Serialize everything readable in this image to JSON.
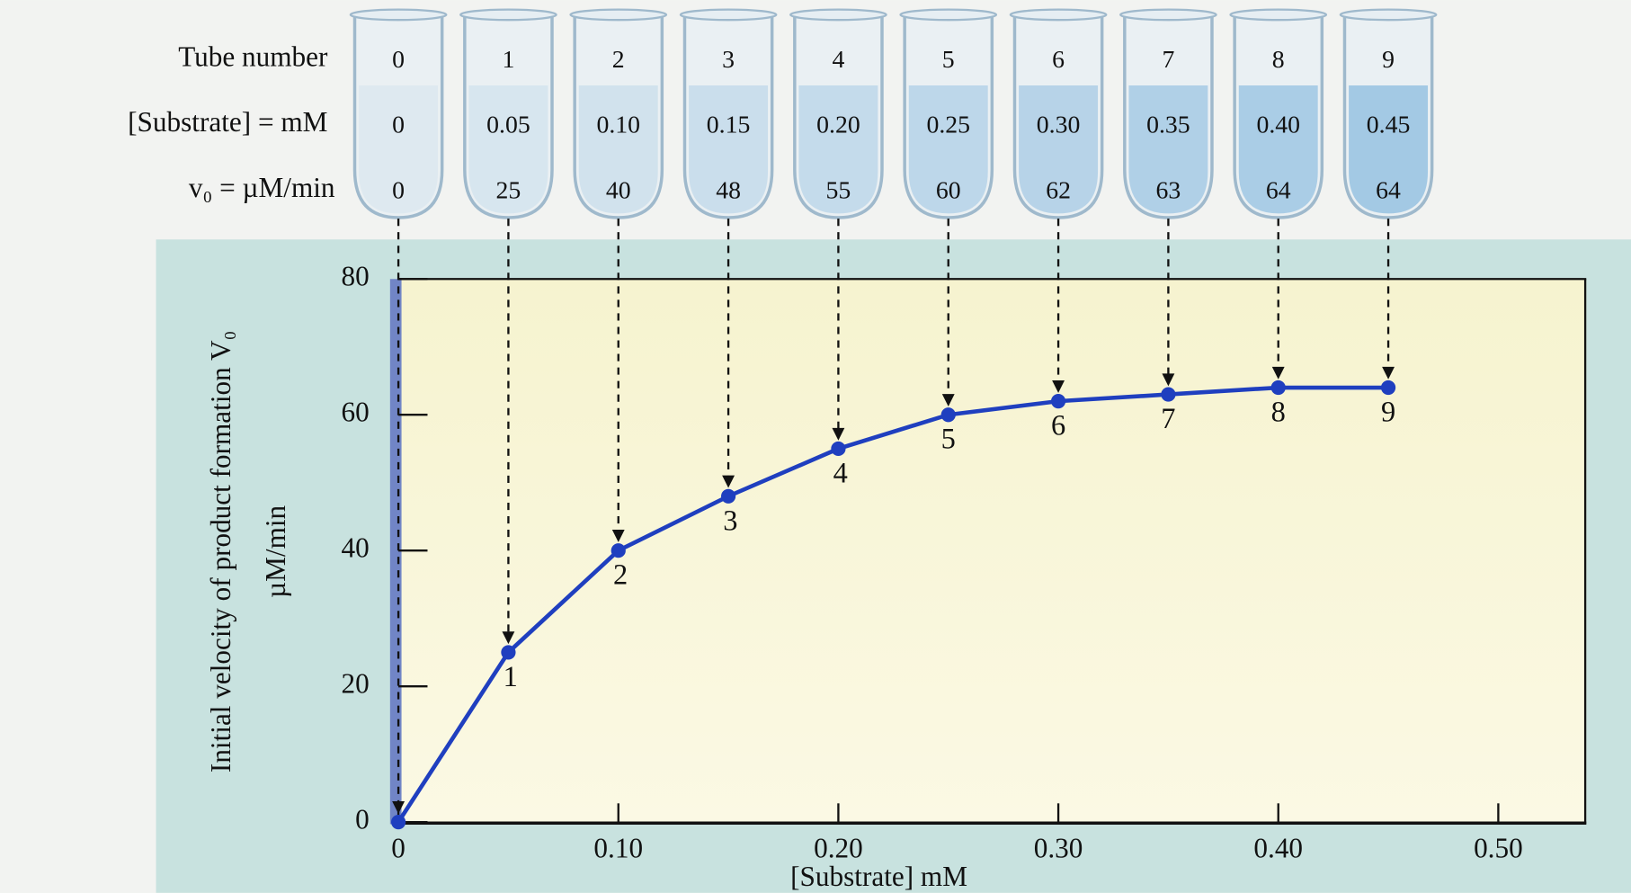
{
  "chart_data": {
    "type": "line",
    "row_labels": [
      "Tube number",
      "[Substrate] = mM",
      "v₀ = µM/min"
    ],
    "tubes": [
      0,
      1,
      2,
      3,
      4,
      5,
      6,
      7,
      8,
      9
    ],
    "x": [
      0,
      0.05,
      0.1,
      0.15,
      0.2,
      0.25,
      0.3,
      0.35,
      0.4,
      0.45
    ],
    "x_labels": [
      "0",
      "0.05",
      "0.10",
      "0.15",
      "0.20",
      "0.25",
      "0.30",
      "0.35",
      "0.40",
      "0.45"
    ],
    "values": [
      0,
      25,
      40,
      48,
      55,
      60,
      62,
      63,
      64,
      64
    ],
    "color": "#1f3fbf",
    "xlabel": "[Substrate] mM",
    "ylabel": "Initial velocity of product formation V₀",
    "ylabel2": "µM/min",
    "xlim": [
      0,
      0.54
    ],
    "ylim": [
      0,
      80
    ],
    "xticks": [
      0,
      {
        "value": 0.1,
        "label": "0.10"
      },
      {
        "value": 0.2,
        "label": "0.20"
      },
      {
        "value": 0.3,
        "label": "0.30"
      },
      {
        "value": 0.4,
        "label": "0.40"
      },
      {
        "value": 0.5,
        "label": "0.50"
      }
    ],
    "yticks": [
      0,
      20,
      40,
      60,
      80
    ]
  }
}
